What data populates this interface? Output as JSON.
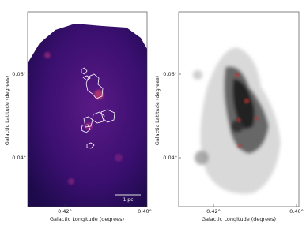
{
  "panels": [
    {
      "x_label": "Galactic Longitude (degrees)",
      "y_label": "Galactic Latitude (degrees)",
      "x_ticks": [
        "0.42°",
        "0.40°"
      ],
      "y_ticks": [
        "0.06°",
        "0.04°"
      ],
      "scale_bar": "1 pc"
    },
    {
      "x_label": "Galactic Longitude (degrees)",
      "y_label": "Galactic Latitude (degrees)",
      "x_ticks": [
        "0.42°",
        "0.40°"
      ],
      "y_ticks": [
        "0.06°",
        "0.04°"
      ]
    }
  ]
}
